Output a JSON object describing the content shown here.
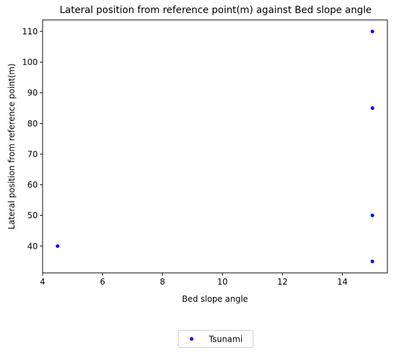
{
  "chart_data": {
    "type": "scatter",
    "title": "Lateral position from reference point(m) against Bed slope angle",
    "xlabel": "Bed slope angle",
    "ylabel": "Lateral position from reference point(m)",
    "xlim": [
      4.0,
      15.5
    ],
    "ylim": [
      31.25,
      113.75
    ],
    "xticks": [
      4,
      6,
      8,
      10,
      12,
      14
    ],
    "yticks": [
      40,
      50,
      60,
      70,
      80,
      90,
      100,
      110
    ],
    "grid": false,
    "legend_placement": "bottom-center, below plot",
    "series": [
      {
        "name": "Tsunami",
        "color": "#0000ff",
        "marker": "circle",
        "points": [
          {
            "x": 4.5,
            "y": 40
          },
          {
            "x": 15,
            "y": 35
          },
          {
            "x": 15,
            "y": 50
          },
          {
            "x": 15,
            "y": 85
          },
          {
            "x": 15,
            "y": 110
          }
        ]
      }
    ]
  }
}
